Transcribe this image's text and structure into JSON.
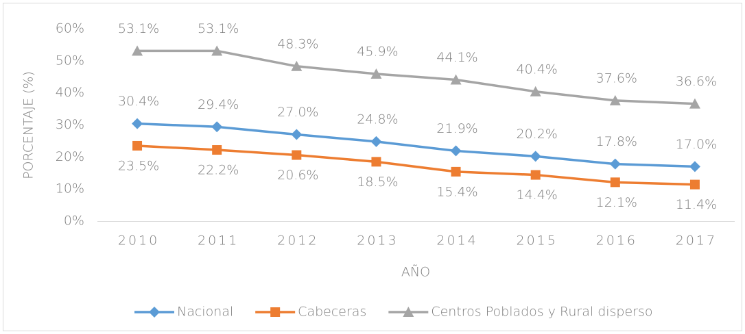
{
  "chart_data": {
    "type": "line",
    "x_label": "AÑO",
    "y_label": "PORCENTAJE (%)",
    "categories": [
      "2010",
      "2011",
      "2012",
      "2013",
      "2014",
      "2015",
      "2016",
      "2017"
    ],
    "ylim": [
      0,
      60
    ],
    "yticks": [
      {
        "value": 0,
        "label": "0%"
      },
      {
        "value": 10,
        "label": "10%"
      },
      {
        "value": 20,
        "label": "20%"
      },
      {
        "value": 30,
        "label": "30%"
      },
      {
        "value": 40,
        "label": "40%"
      },
      {
        "value": 50,
        "label": "50%"
      },
      {
        "value": 60,
        "label": "60%"
      }
    ],
    "grid": false,
    "legend": "bottom",
    "series": [
      {
        "name": "Nacional",
        "color": "#5B9BD5",
        "marker": "diamond",
        "values": [
          30.4,
          29.4,
          27.0,
          24.8,
          21.9,
          20.2,
          17.8,
          17.0
        ],
        "value_labels": [
          "30.4%",
          "29.4%",
          "27.0%",
          "24.8%",
          "21.9%",
          "20.2%",
          "17.8%",
          "17.0%"
        ]
      },
      {
        "name": "Cabeceras",
        "color": "#ED7D31",
        "marker": "square",
        "values": [
          23.5,
          22.2,
          20.6,
          18.5,
          15.4,
          14.4,
          12.1,
          11.4
        ],
        "value_labels": [
          "23.5%",
          "22.2%",
          "20.6%",
          "18.5%",
          "15.4%",
          "14.4%",
          "12.1%",
          "11.4%"
        ]
      },
      {
        "name": "Centros Poblados y Rural disperso",
        "color": "#A5A5A5",
        "marker": "triangle",
        "values": [
          53.1,
          53.1,
          48.3,
          45.9,
          44.1,
          40.4,
          37.6,
          36.6
        ],
        "value_labels": [
          "53.1%",
          "53.1%",
          "48.3%",
          "45.9%",
          "44.1%",
          "40.4%",
          "37.6%",
          "36.6%"
        ]
      }
    ]
  }
}
